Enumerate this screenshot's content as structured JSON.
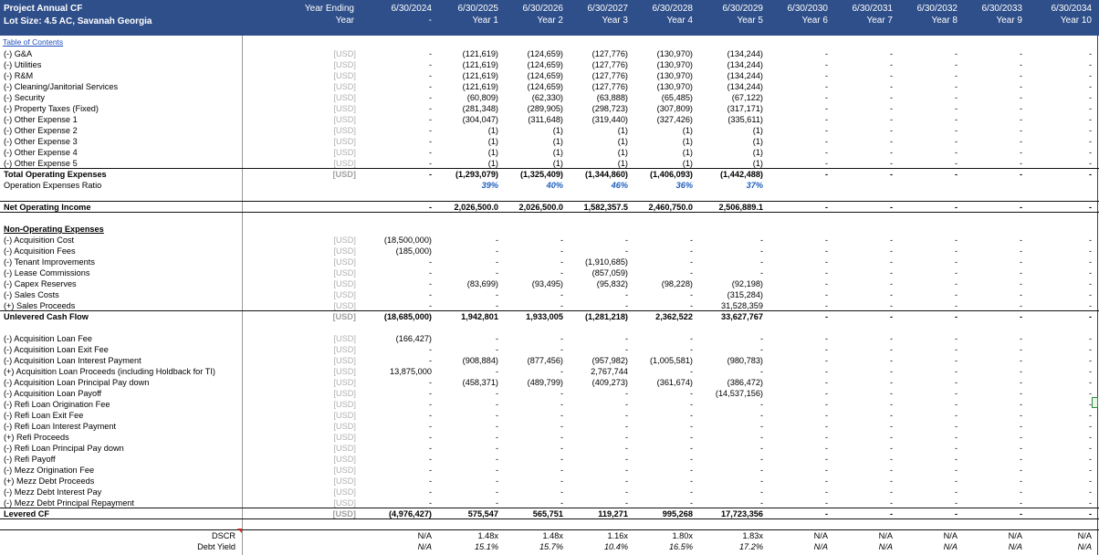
{
  "sheet": {
    "title1": "Project Annual CF",
    "title2": "Lot Size: 4.5 AC, Savanah Georgia",
    "year_ending_label": "Year Ending",
    "year_label": "Year",
    "toc_link": "Table of Contents",
    "columns": [
      {
        "date": "6/30/2024",
        "year": "-"
      },
      {
        "date": "6/30/2025",
        "year": "Year 1"
      },
      {
        "date": "6/30/2026",
        "year": "Year 2"
      },
      {
        "date": "6/30/2027",
        "year": "Year 3"
      },
      {
        "date": "6/30/2028",
        "year": "Year 4"
      },
      {
        "date": "6/30/2029",
        "year": "Year 5"
      },
      {
        "date": "6/30/2030",
        "year": "Year 6"
      },
      {
        "date": "6/30/2031",
        "year": "Year 7"
      },
      {
        "date": "6/30/2032",
        "year": "Year 8"
      },
      {
        "date": "6/30/2033",
        "year": "Year 9"
      },
      {
        "date": "6/30/2034",
        "year": "Year 10"
      }
    ]
  },
  "rows": [
    {
      "label": "(-) G&A",
      "unit": "[USD]",
      "vals": [
        "-",
        "(121,619)",
        "(124,659)",
        "(127,776)",
        "(130,970)",
        "(134,244)",
        "-",
        "-",
        "-",
        "-",
        "-"
      ]
    },
    {
      "label": "(-) Utilities",
      "unit": "[USD]",
      "vals": [
        "-",
        "(121,619)",
        "(124,659)",
        "(127,776)",
        "(130,970)",
        "(134,244)",
        "-",
        "-",
        "-",
        "-",
        "-"
      ]
    },
    {
      "label": "(-) R&M",
      "unit": "[USD]",
      "vals": [
        "-",
        "(121,619)",
        "(124,659)",
        "(127,776)",
        "(130,970)",
        "(134,244)",
        "-",
        "-",
        "-",
        "-",
        "-"
      ]
    },
    {
      "label": "(-) Cleaning/Janitorial Services",
      "unit": "[USD]",
      "vals": [
        "-",
        "(121,619)",
        "(124,659)",
        "(127,776)",
        "(130,970)",
        "(134,244)",
        "-",
        "-",
        "-",
        "-",
        "-"
      ]
    },
    {
      "label": "(-) Security",
      "unit": "[USD]",
      "vals": [
        "-",
        "(60,809)",
        "(62,330)",
        "(63,888)",
        "(65,485)",
        "(67,122)",
        "-",
        "-",
        "-",
        "-",
        "-"
      ]
    },
    {
      "label": "(-) Property Taxes (Fixed)",
      "unit": "[USD]",
      "vals": [
        "-",
        "(281,348)",
        "(289,905)",
        "(298,723)",
        "(307,809)",
        "(317,171)",
        "-",
        "-",
        "-",
        "-",
        "-"
      ]
    },
    {
      "label": "(-) Other Expense 1",
      "unit": "[USD]",
      "vals": [
        "-",
        "(304,047)",
        "(311,648)",
        "(319,440)",
        "(327,426)",
        "(335,611)",
        "-",
        "-",
        "-",
        "-",
        "-"
      ]
    },
    {
      "label": "(-) Other Expense 2",
      "unit": "[USD]",
      "vals": [
        "-",
        "(1)",
        "(1)",
        "(1)",
        "(1)",
        "(1)",
        "-",
        "-",
        "-",
        "-",
        "-"
      ]
    },
    {
      "label": "(-) Other Expense 3",
      "unit": "[USD]",
      "vals": [
        "-",
        "(1)",
        "(1)",
        "(1)",
        "(1)",
        "(1)",
        "-",
        "-",
        "-",
        "-",
        "-"
      ]
    },
    {
      "label": "(-) Other Expense 4",
      "unit": "[USD]",
      "vals": [
        "-",
        "(1)",
        "(1)",
        "(1)",
        "(1)",
        "(1)",
        "-",
        "-",
        "-",
        "-",
        "-"
      ]
    },
    {
      "label": "(-) Other Expense 5",
      "unit": "[USD]",
      "vals": [
        "-",
        "(1)",
        "(1)",
        "(1)",
        "(1)",
        "(1)",
        "-",
        "-",
        "-",
        "-",
        "-"
      ]
    },
    {
      "label": "Total Operating Expenses",
      "unit": "[USD]",
      "vals": [
        "-",
        "(1,293,079)",
        "(1,325,409)",
        "(1,344,860)",
        "(1,406,093)",
        "(1,442,488)",
        "-",
        "-",
        "-",
        "-",
        "-"
      ]
    },
    {
      "label": "Operation Expenses Ratio",
      "unit": "",
      "vals": [
        "",
        "39%",
        "40%",
        "46%",
        "36%",
        "37%",
        "",
        "",
        "",
        "",
        ""
      ]
    },
    {
      "label": "Net Operating Income",
      "unit": "",
      "vals": [
        "-",
        "2,026,500.0",
        "2,026,500.0",
        "1,582,357.5",
        "2,460,750.0",
        "2,506,889.1",
        "-",
        "-",
        "-",
        "-",
        "-"
      ]
    },
    {
      "label": "Non-Operating Expenses",
      "unit": "",
      "vals": [
        "",
        "",
        "",
        "",
        "",
        "",
        "",
        "",
        "",
        "",
        ""
      ]
    },
    {
      "label": "(-) Acquisition Cost",
      "unit": "[USD]",
      "vals": [
        "(18,500,000)",
        "-",
        "-",
        "-",
        "-",
        "-",
        "-",
        "-",
        "-",
        "-",
        "-"
      ]
    },
    {
      "label": "(-) Acquisition Fees",
      "unit": "[USD]",
      "vals": [
        "(185,000)",
        "-",
        "-",
        "-",
        "-",
        "-",
        "-",
        "-",
        "-",
        "-",
        "-"
      ]
    },
    {
      "label": "(-) Tenant Improvements",
      "unit": "[USD]",
      "vals": [
        "-",
        "-",
        "-",
        "(1,910,685)",
        "-",
        "-",
        "-",
        "-",
        "-",
        "-",
        "-"
      ]
    },
    {
      "label": "(-) Lease Commissions",
      "unit": "[USD]",
      "vals": [
        "-",
        "-",
        "-",
        "(857,059)",
        "-",
        "-",
        "-",
        "-",
        "-",
        "-",
        "-"
      ]
    },
    {
      "label": "(-) Capex Reserves",
      "unit": "[USD]",
      "vals": [
        "-",
        "(83,699)",
        "(93,495)",
        "(95,832)",
        "(98,228)",
        "(92,198)",
        "-",
        "-",
        "-",
        "-",
        "-"
      ]
    },
    {
      "label": "(-) Sales Costs",
      "unit": "[USD]",
      "vals": [
        "-",
        "-",
        "-",
        "-",
        "-",
        "(315,284)",
        "-",
        "-",
        "-",
        "-",
        "-"
      ]
    },
    {
      "label": "(+) Sales Proceeds",
      "unit": "[USD]",
      "vals": [
        "-",
        "-",
        "-",
        "-",
        "-",
        "31,528,359",
        "-",
        "-",
        "-",
        "-",
        "-"
      ]
    },
    {
      "label": "Unlevered Cash Flow",
      "unit": "[USD]",
      "vals": [
        "(18,685,000)",
        "1,942,801",
        "1,933,005",
        "(1,281,218)",
        "2,362,522",
        "33,627,767",
        "-",
        "-",
        "-",
        "-",
        "-"
      ]
    },
    {
      "label": "(-) Acquisition Loan Fee",
      "unit": "[USD]",
      "vals": [
        "(166,427)",
        "-",
        "-",
        "-",
        "-",
        "-",
        "-",
        "-",
        "-",
        "-",
        "-"
      ]
    },
    {
      "label": "(-) Acquisition Loan Exit Fee",
      "unit": "[USD]",
      "vals": [
        "-",
        "-",
        "-",
        "-",
        "-",
        "-",
        "-",
        "-",
        "-",
        "-",
        "-"
      ]
    },
    {
      "label": "(-) Acquisition Loan Interest Payment",
      "unit": "[USD]",
      "vals": [
        "-",
        "(908,884)",
        "(877,456)",
        "(957,982)",
        "(1,005,581)",
        "(980,783)",
        "-",
        "-",
        "-",
        "-",
        "-"
      ]
    },
    {
      "label": "(+) Acquisition Loan Proceeds (including Holdback for TI)",
      "unit": "[USD]",
      "vals": [
        "13,875,000",
        "-",
        "-",
        "2,767,744",
        "-",
        "-",
        "-",
        "-",
        "-",
        "-",
        "-"
      ]
    },
    {
      "label": "(-) Acquisition Loan Principal Pay down",
      "unit": "[USD]",
      "vals": [
        "-",
        "(458,371)",
        "(489,799)",
        "(409,273)",
        "(361,674)",
        "(386,472)",
        "-",
        "-",
        "-",
        "-",
        "-"
      ]
    },
    {
      "label": "(-) Acquisition  Loan Payoff",
      "unit": "[USD]",
      "vals": [
        "-",
        "-",
        "-",
        "-",
        "-",
        "(14,537,156)",
        "-",
        "-",
        "-",
        "-",
        "-"
      ]
    },
    {
      "label": "(-) Refi Loan Origination Fee",
      "unit": "[USD]",
      "vals": [
        "-",
        "-",
        "-",
        "-",
        "-",
        "-",
        "-",
        "-",
        "-",
        "-",
        "-"
      ]
    },
    {
      "label": "(-) Refi Loan Exit Fee",
      "unit": "[USD]",
      "vals": [
        "-",
        "-",
        "-",
        "-",
        "-",
        "-",
        "-",
        "-",
        "-",
        "-",
        "-"
      ]
    },
    {
      "label": "(-) Refi Loan Interest Payment",
      "unit": "[USD]",
      "vals": [
        "-",
        "-",
        "-",
        "-",
        "-",
        "-",
        "-",
        "-",
        "-",
        "-",
        "-"
      ]
    },
    {
      "label": "(+) Refi Proceeds",
      "unit": "[USD]",
      "vals": [
        "-",
        "-",
        "-",
        "-",
        "-",
        "-",
        "-",
        "-",
        "-",
        "-",
        "-"
      ]
    },
    {
      "label": "(-) Refi Loan Principal Pay down",
      "unit": "[USD]",
      "vals": [
        "-",
        "-",
        "-",
        "-",
        "-",
        "-",
        "-",
        "-",
        "-",
        "-",
        "-"
      ]
    },
    {
      "label": "(-) Refi Payoff",
      "unit": "[USD]",
      "vals": [
        "-",
        "-",
        "-",
        "-",
        "-",
        "-",
        "-",
        "-",
        "-",
        "-",
        "-"
      ]
    },
    {
      "label": "(-) Mezz Origination Fee",
      "unit": "[USD]",
      "vals": [
        "-",
        "-",
        "-",
        "-",
        "-",
        "-",
        "-",
        "-",
        "-",
        "-",
        "-"
      ]
    },
    {
      "label": "(+) Mezz Debt Proceeds",
      "unit": "[USD]",
      "vals": [
        "-",
        "-",
        "-",
        "-",
        "-",
        "-",
        "-",
        "-",
        "-",
        "-",
        "-"
      ]
    },
    {
      "label": "(-) Mezz Debt Interest Pay",
      "unit": "[USD]",
      "vals": [
        "-",
        "-",
        "-",
        "-",
        "-",
        "-",
        "-",
        "-",
        "-",
        "-",
        "-"
      ]
    },
    {
      "label": "(-) Mezz Debt Principal Repayment",
      "unit": "[USD]",
      "vals": [
        "-",
        "-",
        "-",
        "-",
        "-",
        "-",
        "-",
        "-",
        "-",
        "-",
        "-"
      ]
    },
    {
      "label": "Levered CF",
      "unit": "[USD]",
      "vals": [
        "(4,976,427)",
        "575,547",
        "565,751",
        "119,271",
        "995,268",
        "17,723,356",
        "-",
        "-",
        "-",
        "-",
        "-"
      ]
    },
    {
      "label": "DSCR",
      "unit": "",
      "vals": [
        "N/A",
        "1.48x",
        "1.48x",
        "1.16x",
        "1.80x",
        "1.83x",
        "N/A",
        "N/A",
        "N/A",
        "N/A",
        "N/A"
      ]
    },
    {
      "label": "Debt Yield",
      "unit": "",
      "vals": [
        "N/A",
        "15.1%",
        "15.7%",
        "10.4%",
        "16.5%",
        "17.2%",
        "N/A",
        "N/A",
        "N/A",
        "N/A",
        "N/A"
      ]
    }
  ],
  "colors": {
    "header_bg": "#2f4f8a",
    "percent_blue": "#1f5fbf",
    "link_blue": "#1f4fbf"
  }
}
